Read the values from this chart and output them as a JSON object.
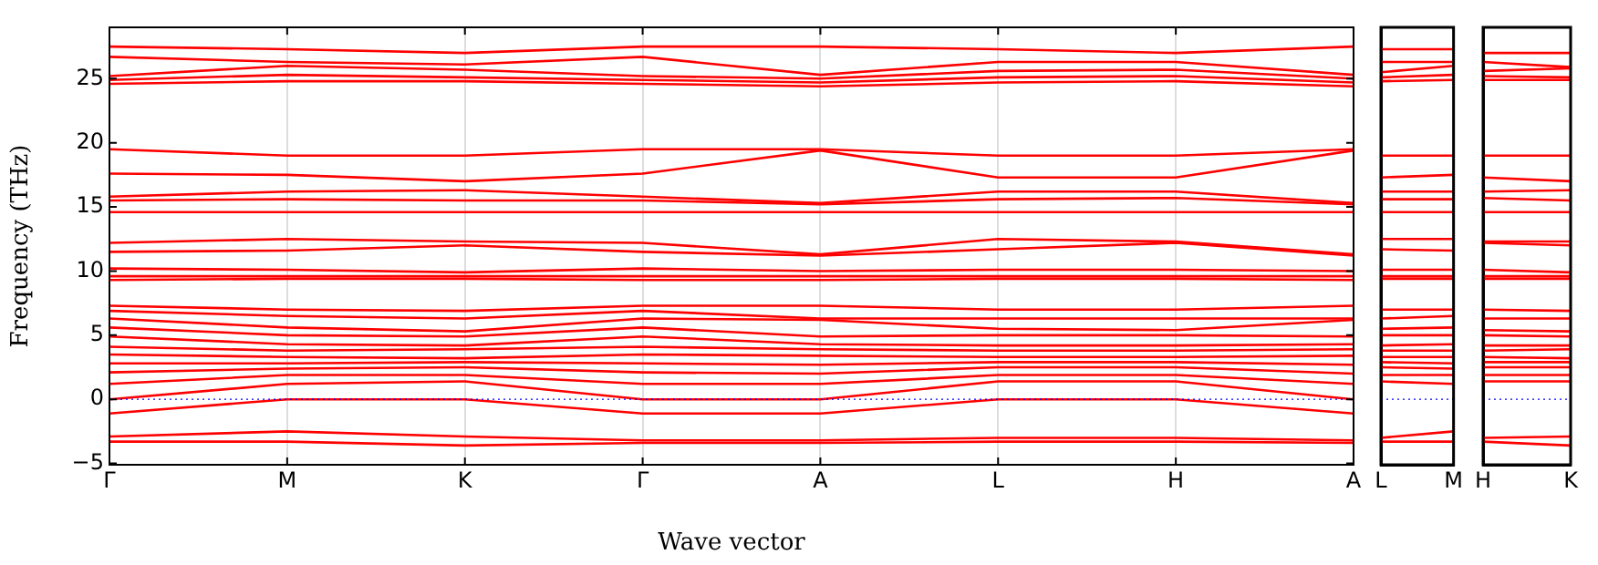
{
  "chart_data": [
    {
      "type": "line",
      "xlabel": "Wave vector",
      "ylabel": "Frequency (THz)",
      "categories": [
        "Γ",
        "M",
        "K",
        "Γ",
        "A",
        "L",
        "H",
        "A"
      ],
      "ylim": [
        -5.1,
        29
      ],
      "yticks": [
        -5,
        0,
        5,
        10,
        15,
        20,
        25
      ],
      "grid": "x",
      "legend": false,
      "marker": "none",
      "line_style": "solid",
      "ref_lines": [
        {
          "axis": "y",
          "value": 0,
          "color": "#0000ff",
          "line_style": "dotted"
        }
      ],
      "series": [
        {
          "color": "#ff0000",
          "values": [
            27.5,
            27.3,
            27.0,
            27.5,
            27.5,
            27.3,
            27.0,
            27.5
          ]
        },
        {
          "color": "#ff0000",
          "values": [
            26.7,
            26.3,
            26.1,
            26.7,
            25.3,
            26.3,
            26.3,
            25.3
          ]
        },
        {
          "color": "#ff0000",
          "values": [
            25.2,
            26.0,
            25.7,
            25.2,
            25.0,
            25.6,
            25.7,
            25.0
          ]
        },
        {
          "color": "#ff0000",
          "values": [
            24.9,
            25.3,
            25.1,
            24.9,
            24.7,
            25.1,
            25.2,
            24.7
          ]
        },
        {
          "color": "#ff0000",
          "values": [
            24.6,
            24.8,
            24.8,
            24.6,
            24.4,
            24.7,
            24.8,
            24.4
          ]
        },
        {
          "color": "#ff0000",
          "values": [
            19.5,
            19.0,
            19.0,
            19.5,
            19.5,
            19.0,
            19.0,
            19.5
          ]
        },
        {
          "color": "#ff0000",
          "values": [
            17.6,
            17.5,
            17.0,
            17.6,
            19.4,
            17.3,
            17.3,
            19.4
          ]
        },
        {
          "color": "#ff0000",
          "values": [
            15.8,
            16.2,
            16.3,
            15.8,
            15.3,
            16.2,
            16.2,
            15.3
          ]
        },
        {
          "color": "#ff0000",
          "values": [
            15.5,
            15.6,
            15.5,
            15.5,
            15.2,
            15.6,
            15.7,
            15.2
          ]
        },
        {
          "color": "#ff0000",
          "values": [
            14.6,
            14.6,
            14.6,
            14.6,
            14.6,
            14.6,
            14.6,
            14.6
          ]
        },
        {
          "color": "#ff0000",
          "values": [
            12.2,
            12.5,
            12.3,
            12.2,
            11.3,
            12.5,
            12.3,
            11.3
          ]
        },
        {
          "color": "#ff0000",
          "values": [
            11.5,
            11.6,
            12.0,
            11.5,
            11.2,
            11.7,
            12.2,
            11.2
          ]
        },
        {
          "color": "#ff0000",
          "values": [
            10.2,
            10.1,
            9.9,
            10.2,
            10.0,
            10.1,
            10.1,
            10.0
          ]
        },
        {
          "color": "#ff0000",
          "values": [
            9.6,
            9.6,
            9.6,
            9.6,
            9.6,
            9.6,
            9.6,
            9.6
          ]
        },
        {
          "color": "#ff0000",
          "values": [
            9.3,
            9.4,
            9.4,
            9.3,
            9.3,
            9.4,
            9.4,
            9.3
          ]
        },
        {
          "color": "#ff0000",
          "values": [
            7.3,
            7.0,
            6.9,
            7.3,
            7.3,
            7.0,
            7.0,
            7.3
          ]
        },
        {
          "color": "#ff0000",
          "values": [
            6.9,
            6.5,
            6.3,
            6.9,
            6.3,
            6.3,
            6.3,
            6.3
          ]
        },
        {
          "color": "#ff0000",
          "values": [
            6.3,
            5.6,
            5.3,
            6.3,
            6.2,
            5.5,
            5.4,
            6.2
          ]
        },
        {
          "color": "#ff0000",
          "values": [
            5.6,
            5.0,
            4.9,
            5.6,
            4.9,
            5.0,
            5.0,
            4.9
          ]
        },
        {
          "color": "#ff0000",
          "values": [
            4.9,
            4.3,
            4.2,
            4.9,
            4.3,
            4.2,
            4.2,
            4.3
          ]
        },
        {
          "color": "#ff0000",
          "values": [
            4.1,
            3.8,
            3.9,
            4.1,
            3.9,
            3.8,
            3.8,
            3.9
          ]
        },
        {
          "color": "#ff0000",
          "values": [
            3.5,
            3.3,
            3.2,
            3.5,
            3.4,
            3.3,
            3.3,
            3.4
          ]
        },
        {
          "color": "#ff0000",
          "values": [
            2.8,
            2.8,
            2.9,
            2.8,
            2.7,
            2.9,
            2.9,
            2.7
          ]
        },
        {
          "color": "#ff0000",
          "values": [
            2.1,
            2.4,
            2.5,
            2.1,
            2.0,
            2.5,
            2.5,
            2.0
          ]
        },
        {
          "color": "#ff0000",
          "values": [
            1.2,
            1.9,
            1.9,
            1.2,
            1.2,
            1.9,
            1.9,
            1.2
          ]
        },
        {
          "color": "#ff0000",
          "values": [
            0,
            1.2,
            1.4,
            0,
            0,
            1.4,
            1.4,
            0
          ]
        },
        {
          "color": "#ff0000",
          "values": [
            -1.1,
            0,
            0,
            -1.1,
            -1.1,
            0,
            0,
            -1.1
          ]
        },
        {
          "color": "#ff0000",
          "values": [
            -2.9,
            -2.5,
            -2.9,
            -3.2,
            -3.2,
            -3.0,
            -3.0,
            -3.2
          ]
        },
        {
          "color": "#ff0000",
          "values": [
            -3.3,
            -3.3,
            -3.6,
            -3.4,
            -3.4,
            -3.3,
            -3.3,
            -3.4
          ]
        }
      ]
    },
    {
      "type": "line",
      "categories": [
        "L",
        "M"
      ],
      "ylim": [
        -5.1,
        29
      ],
      "yticks": [
        -5,
        0,
        5,
        10,
        15,
        20,
        25
      ],
      "tick_labels": "x",
      "legend": false,
      "marker": "none",
      "line_style": "solid",
      "ref_lines": [
        {
          "axis": "y",
          "value": 0,
          "color": "#0000ff",
          "line_style": "dotted"
        }
      ],
      "series": [
        {
          "color": "#ff0000",
          "values": [
            27.3,
            27.3
          ]
        },
        {
          "color": "#ff0000",
          "values": [
            26.3,
            26.3
          ]
        },
        {
          "color": "#ff0000",
          "values": [
            25.5,
            26.0
          ]
        },
        {
          "color": "#ff0000",
          "values": [
            25.1,
            25.3
          ]
        },
        {
          "color": "#ff0000",
          "values": [
            24.8,
            24.9
          ]
        },
        {
          "color": "#ff0000",
          "values": [
            19.0,
            19.0
          ]
        },
        {
          "color": "#ff0000",
          "values": [
            17.3,
            17.5
          ]
        },
        {
          "color": "#ff0000",
          "values": [
            16.2,
            16.2
          ]
        },
        {
          "color": "#ff0000",
          "values": [
            15.6,
            15.6
          ]
        },
        {
          "color": "#ff0000",
          "values": [
            14.6,
            14.6
          ]
        },
        {
          "color": "#ff0000",
          "values": [
            12.5,
            12.5
          ]
        },
        {
          "color": "#ff0000",
          "values": [
            11.7,
            11.6
          ]
        },
        {
          "color": "#ff0000",
          "values": [
            10.1,
            10.1
          ]
        },
        {
          "color": "#ff0000",
          "values": [
            9.6,
            9.6
          ]
        },
        {
          "color": "#ff0000",
          "values": [
            9.4,
            9.4
          ]
        },
        {
          "color": "#ff0000",
          "values": [
            7.0,
            7.0
          ]
        },
        {
          "color": "#ff0000",
          "values": [
            6.3,
            6.5
          ]
        },
        {
          "color": "#ff0000",
          "values": [
            5.5,
            5.6
          ]
        },
        {
          "color": "#ff0000",
          "values": [
            5.0,
            5.0
          ]
        },
        {
          "color": "#ff0000",
          "values": [
            4.2,
            4.3
          ]
        },
        {
          "color": "#ff0000",
          "values": [
            3.8,
            3.8
          ]
        },
        {
          "color": "#ff0000",
          "values": [
            3.3,
            3.3
          ]
        },
        {
          "color": "#ff0000",
          "values": [
            2.9,
            2.8
          ]
        },
        {
          "color": "#ff0000",
          "values": [
            2.5,
            2.4
          ]
        },
        {
          "color": "#ff0000",
          "values": [
            1.9,
            1.9
          ]
        },
        {
          "color": "#ff0000",
          "values": [
            1.4,
            1.2
          ]
        },
        {
          "color": "#ff0000",
          "values": [
            -3.0,
            -2.5
          ]
        },
        {
          "color": "#ff0000",
          "values": [
            -3.3,
            -3.3
          ]
        }
      ]
    },
    {
      "type": "line",
      "categories": [
        "H",
        "K"
      ],
      "ylim": [
        -5.1,
        29
      ],
      "yticks": [
        -5,
        0,
        5,
        10,
        15,
        20,
        25
      ],
      "tick_labels": "x",
      "legend": false,
      "marker": "none",
      "line_style": "solid",
      "ref_lines": [
        {
          "axis": "y",
          "value": 0,
          "color": "#0000ff",
          "line_style": "dotted"
        }
      ],
      "series": [
        {
          "color": "#ff0000",
          "values": [
            27.0,
            27.0
          ]
        },
        {
          "color": "#ff0000",
          "values": [
            26.3,
            25.9
          ]
        },
        {
          "color": "#ff0000",
          "values": [
            25.6,
            25.8
          ]
        },
        {
          "color": "#ff0000",
          "values": [
            25.2,
            25.1
          ]
        },
        {
          "color": "#ff0000",
          "values": [
            24.9,
            24.9
          ]
        },
        {
          "color": "#ff0000",
          "values": [
            19.0,
            19.0
          ]
        },
        {
          "color": "#ff0000",
          "values": [
            17.3,
            17.0
          ]
        },
        {
          "color": "#ff0000",
          "values": [
            16.2,
            16.3
          ]
        },
        {
          "color": "#ff0000",
          "values": [
            15.7,
            15.5
          ]
        },
        {
          "color": "#ff0000",
          "values": [
            14.6,
            14.6
          ]
        },
        {
          "color": "#ff0000",
          "values": [
            12.3,
            12.3
          ]
        },
        {
          "color": "#ff0000",
          "values": [
            12.2,
            12.0
          ]
        },
        {
          "color": "#ff0000",
          "values": [
            10.1,
            9.9
          ]
        },
        {
          "color": "#ff0000",
          "values": [
            9.6,
            9.6
          ]
        },
        {
          "color": "#ff0000",
          "values": [
            9.4,
            9.4
          ]
        },
        {
          "color": "#ff0000",
          "values": [
            7.0,
            6.9
          ]
        },
        {
          "color": "#ff0000",
          "values": [
            6.3,
            6.3
          ]
        },
        {
          "color": "#ff0000",
          "values": [
            5.4,
            5.3
          ]
        },
        {
          "color": "#ff0000",
          "values": [
            5.0,
            4.9
          ]
        },
        {
          "color": "#ff0000",
          "values": [
            4.2,
            4.2
          ]
        },
        {
          "color": "#ff0000",
          "values": [
            3.8,
            3.9
          ]
        },
        {
          "color": "#ff0000",
          "values": [
            3.3,
            3.2
          ]
        },
        {
          "color": "#ff0000",
          "values": [
            2.9,
            2.9
          ]
        },
        {
          "color": "#ff0000",
          "values": [
            2.5,
            2.5
          ]
        },
        {
          "color": "#ff0000",
          "values": [
            1.9,
            1.9
          ]
        },
        {
          "color": "#ff0000",
          "values": [
            1.4,
            1.4
          ]
        },
        {
          "color": "#ff0000",
          "values": [
            -3.0,
            -2.9
          ]
        },
        {
          "color": "#ff0000",
          "values": [
            -3.3,
            -3.6
          ]
        }
      ]
    }
  ]
}
